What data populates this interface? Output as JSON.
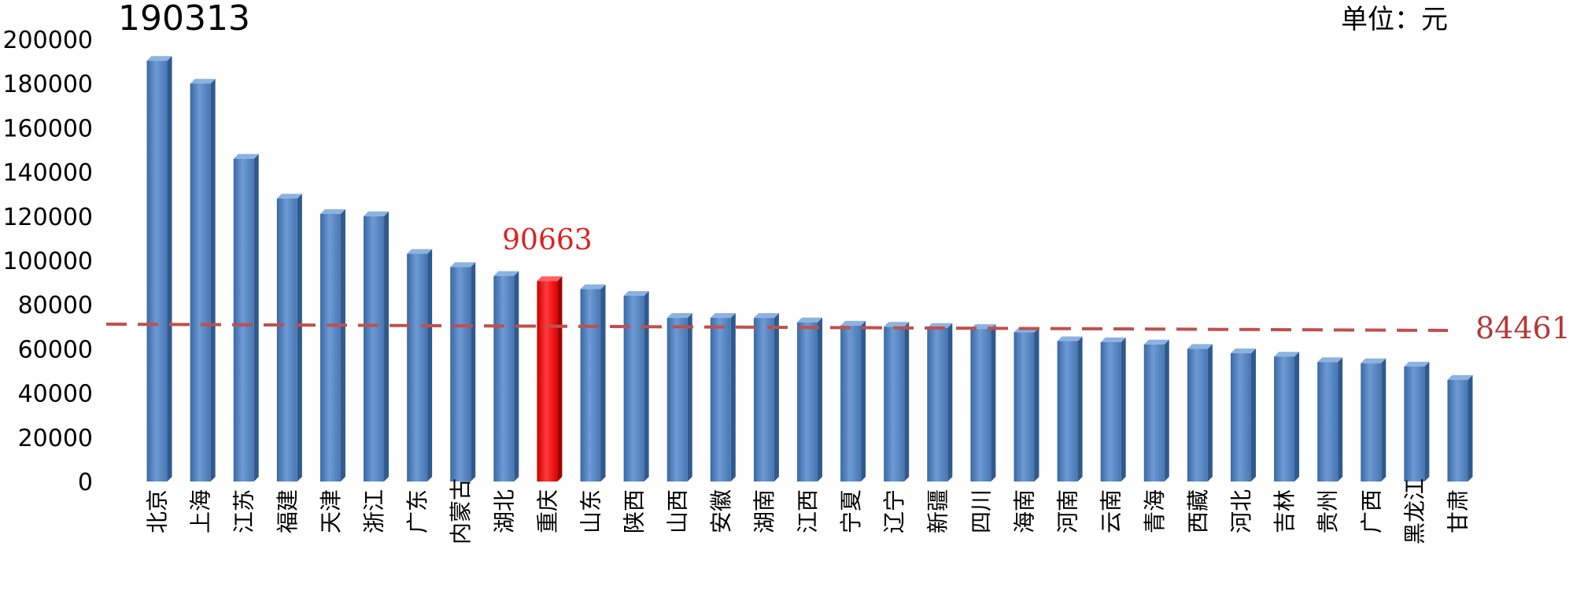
{
  "chart_data": {
    "type": "bar",
    "unit_label": "单位：元",
    "categories": [
      "北京",
      "上海",
      "江苏",
      "福建",
      "天津",
      "浙江",
      "广东",
      "内蒙古",
      "湖北",
      "重庆",
      "山东",
      "陕西",
      "山西",
      "安徽",
      "湖南",
      "江西",
      "宁夏",
      "辽宁",
      "新疆",
      "四川",
      "海南",
      "河南",
      "云南",
      "青海",
      "西藏",
      "河北",
      "吉林",
      "贵州",
      "广西",
      "黑龙江",
      "甘肃"
    ],
    "values": [
      190313,
      180000,
      146000,
      128000,
      121000,
      120000,
      103000,
      97000,
      93000,
      90663,
      87000,
      84000,
      74000,
      74000,
      74000,
      72000,
      70500,
      70000,
      69500,
      69000,
      67500,
      63500,
      63000,
      62000,
      60000,
      58000,
      56500,
      54000,
      53500,
      52000,
      46000
    ],
    "ylim": [
      0,
      200000
    ],
    "yticks": [
      0,
      20000,
      40000,
      60000,
      80000,
      100000,
      120000,
      140000,
      160000,
      180000,
      200000
    ],
    "bar_color": "#4a7ebb",
    "highlight": {
      "category": "重庆",
      "value": 90663,
      "label": "90663",
      "color": "#ff0000"
    },
    "max_label": {
      "category": "北京",
      "label": "190313"
    },
    "reference_line": {
      "value": 84461,
      "label": "84461",
      "color": "#c0504d",
      "style": "dashed"
    },
    "grid": false,
    "legend": "none"
  }
}
